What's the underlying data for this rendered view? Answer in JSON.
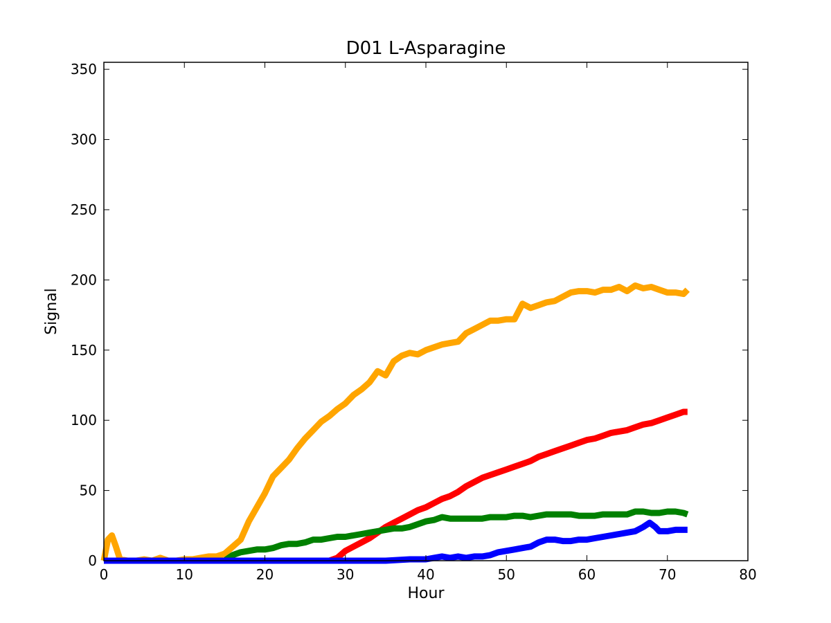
{
  "chart_data": {
    "type": "line",
    "title": "D01 L-Asparagine",
    "xlabel": "Hour",
    "ylabel": "Signal",
    "xlim": [
      0,
      80
    ],
    "ylim": [
      0,
      355
    ],
    "xticks": [
      0,
      10,
      20,
      30,
      40,
      50,
      60,
      70,
      80
    ],
    "yticks": [
      0,
      50,
      100,
      150,
      200,
      250,
      300,
      350
    ],
    "grid": false,
    "legend": "none",
    "series": [
      {
        "color": "#ffa500",
        "points": [
          [
            0,
            0
          ],
          [
            0.5,
            15
          ],
          [
            1,
            18
          ],
          [
            1.5,
            10
          ],
          [
            2,
            1
          ],
          [
            3,
            0
          ],
          [
            4,
            0
          ],
          [
            5,
            1
          ],
          [
            6,
            0
          ],
          [
            7,
            2
          ],
          [
            8,
            0
          ],
          [
            9,
            0
          ],
          [
            10,
            1
          ],
          [
            11,
            1
          ],
          [
            12,
            2
          ],
          [
            13,
            3
          ],
          [
            14,
            3
          ],
          [
            15,
            5
          ],
          [
            16,
            10
          ],
          [
            17,
            15
          ],
          [
            18,
            28
          ],
          [
            19,
            38
          ],
          [
            20,
            48
          ],
          [
            21,
            60
          ],
          [
            22,
            66
          ],
          [
            23,
            72
          ],
          [
            24,
            80
          ],
          [
            25,
            87
          ],
          [
            26,
            93
          ],
          [
            27,
            99
          ],
          [
            28,
            103
          ],
          [
            29,
            108
          ],
          [
            30,
            112
          ],
          [
            31,
            118
          ],
          [
            32,
            122
          ],
          [
            33,
            127
          ],
          [
            34,
            135
          ],
          [
            35,
            132
          ],
          [
            36,
            142
          ],
          [
            37,
            146
          ],
          [
            38,
            148
          ],
          [
            39,
            147
          ],
          [
            40,
            150
          ],
          [
            41,
            152
          ],
          [
            42,
            154
          ],
          [
            43,
            155
          ],
          [
            44,
            156
          ],
          [
            45,
            162
          ],
          [
            46,
            165
          ],
          [
            47,
            168
          ],
          [
            48,
            171
          ],
          [
            49,
            171
          ],
          [
            50,
            172
          ],
          [
            51,
            172
          ],
          [
            52,
            183
          ],
          [
            53,
            180
          ],
          [
            54,
            182
          ],
          [
            55,
            184
          ],
          [
            56,
            185
          ],
          [
            57,
            188
          ],
          [
            58,
            191
          ],
          [
            59,
            192
          ],
          [
            60,
            192
          ],
          [
            61,
            191
          ],
          [
            62,
            193
          ],
          [
            63,
            193
          ],
          [
            64,
            195
          ],
          [
            65,
            192
          ],
          [
            66,
            196
          ],
          [
            67,
            194
          ],
          [
            68,
            195
          ],
          [
            69,
            193
          ],
          [
            70,
            191
          ],
          [
            71,
            191
          ],
          [
            72,
            190
          ],
          [
            72.5,
            193
          ]
        ]
      },
      {
        "color": "#ff0000",
        "points": [
          [
            0,
            0
          ],
          [
            10,
            0
          ],
          [
            20,
            0
          ],
          [
            28,
            0
          ],
          [
            29,
            2
          ],
          [
            30,
            7
          ],
          [
            31,
            10
          ],
          [
            32,
            13
          ],
          [
            33,
            16
          ],
          [
            34,
            20
          ],
          [
            35,
            24
          ],
          [
            36,
            27
          ],
          [
            37,
            30
          ],
          [
            38,
            33
          ],
          [
            39,
            36
          ],
          [
            40,
            38
          ],
          [
            41,
            41
          ],
          [
            42,
            44
          ],
          [
            43,
            46
          ],
          [
            44,
            49
          ],
          [
            45,
            53
          ],
          [
            46,
            56
          ],
          [
            47,
            59
          ],
          [
            48,
            61
          ],
          [
            49,
            63
          ],
          [
            50,
            65
          ],
          [
            51,
            67
          ],
          [
            52,
            69
          ],
          [
            53,
            71
          ],
          [
            54,
            74
          ],
          [
            55,
            76
          ],
          [
            56,
            78
          ],
          [
            57,
            80
          ],
          [
            58,
            82
          ],
          [
            59,
            84
          ],
          [
            60,
            86
          ],
          [
            61,
            87
          ],
          [
            62,
            89
          ],
          [
            63,
            91
          ],
          [
            64,
            92
          ],
          [
            65,
            93
          ],
          [
            66,
            95
          ],
          [
            67,
            97
          ],
          [
            68,
            98
          ],
          [
            69,
            100
          ],
          [
            70,
            102
          ],
          [
            71,
            104
          ],
          [
            72,
            106
          ],
          [
            72.5,
            106
          ]
        ]
      },
      {
        "color": "#008000",
        "points": [
          [
            0,
            0
          ],
          [
            10,
            0
          ],
          [
            15,
            0
          ],
          [
            16,
            4
          ],
          [
            17,
            6
          ],
          [
            18,
            7
          ],
          [
            19,
            8
          ],
          [
            20,
            8
          ],
          [
            21,
            9
          ],
          [
            22,
            11
          ],
          [
            23,
            12
          ],
          [
            24,
            12
          ],
          [
            25,
            13
          ],
          [
            26,
            15
          ],
          [
            27,
            15
          ],
          [
            28,
            16
          ],
          [
            29,
            17
          ],
          [
            30,
            17
          ],
          [
            31,
            18
          ],
          [
            32,
            19
          ],
          [
            33,
            20
          ],
          [
            34,
            21
          ],
          [
            35,
            22
          ],
          [
            36,
            23
          ],
          [
            37,
            23
          ],
          [
            38,
            24
          ],
          [
            39,
            26
          ],
          [
            40,
            28
          ],
          [
            41,
            29
          ],
          [
            42,
            31
          ],
          [
            43,
            30
          ],
          [
            44,
            30
          ],
          [
            45,
            30
          ],
          [
            46,
            30
          ],
          [
            47,
            30
          ],
          [
            48,
            31
          ],
          [
            49,
            31
          ],
          [
            50,
            31
          ],
          [
            51,
            32
          ],
          [
            52,
            32
          ],
          [
            53,
            31
          ],
          [
            54,
            32
          ],
          [
            55,
            33
          ],
          [
            56,
            33
          ],
          [
            57,
            33
          ],
          [
            58,
            33
          ],
          [
            59,
            32
          ],
          [
            60,
            32
          ],
          [
            61,
            32
          ],
          [
            62,
            33
          ],
          [
            63,
            33
          ],
          [
            64,
            33
          ],
          [
            65,
            33
          ],
          [
            66,
            35
          ],
          [
            67,
            35
          ],
          [
            68,
            34
          ],
          [
            69,
            34
          ],
          [
            70,
            35
          ],
          [
            71,
            35
          ],
          [
            72,
            34
          ],
          [
            72.5,
            33
          ]
        ]
      },
      {
        "color": "#0000ff",
        "points": [
          [
            0,
            0
          ],
          [
            10,
            0
          ],
          [
            20,
            0
          ],
          [
            30,
            0
          ],
          [
            35,
            0
          ],
          [
            38,
            1
          ],
          [
            40,
            1
          ],
          [
            41,
            2
          ],
          [
            42,
            3
          ],
          [
            43,
            2
          ],
          [
            44,
            3
          ],
          [
            45,
            2
          ],
          [
            46,
            3
          ],
          [
            47,
            3
          ],
          [
            48,
            4
          ],
          [
            49,
            6
          ],
          [
            50,
            7
          ],
          [
            51,
            8
          ],
          [
            52,
            9
          ],
          [
            53,
            10
          ],
          [
            54,
            13
          ],
          [
            55,
            15
          ],
          [
            56,
            15
          ],
          [
            57,
            14
          ],
          [
            58,
            14
          ],
          [
            59,
            15
          ],
          [
            60,
            15
          ],
          [
            61,
            16
          ],
          [
            62,
            17
          ],
          [
            63,
            18
          ],
          [
            64,
            19
          ],
          [
            65,
            20
          ],
          [
            66,
            21
          ],
          [
            67,
            24
          ],
          [
            67.8,
            27
          ],
          [
            68.5,
            24
          ],
          [
            69,
            21
          ],
          [
            70,
            21
          ],
          [
            71,
            22
          ],
          [
            72,
            22
          ],
          [
            72.5,
            22
          ]
        ]
      }
    ]
  }
}
